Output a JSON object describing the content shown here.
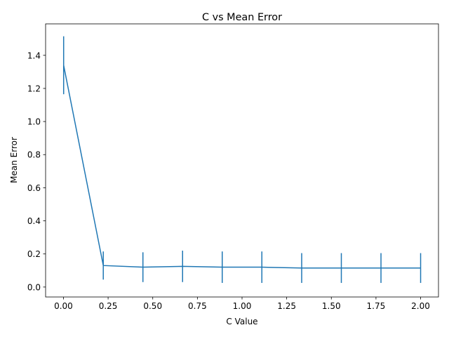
{
  "chart_data": {
    "type": "line",
    "title": "C vs Mean Error",
    "xlabel": "C Value",
    "ylabel": "Mean Error",
    "xlim": [
      -0.1,
      2.1
    ],
    "ylim": [
      -0.06,
      1.59
    ],
    "x_ticks": [
      0.0,
      0.25,
      0.5,
      0.75,
      1.0,
      1.25,
      1.5,
      1.75,
      2.0
    ],
    "x_tick_labels": [
      "0.00",
      "0.25",
      "0.50",
      "0.75",
      "1.00",
      "1.25",
      "1.50",
      "1.75",
      "2.00"
    ],
    "y_ticks": [
      0.0,
      0.2,
      0.4,
      0.6,
      0.8,
      1.0,
      1.2,
      1.4
    ],
    "y_tick_labels": [
      "0.0",
      "0.2",
      "0.4",
      "0.6",
      "0.8",
      "1.0",
      "1.2",
      "1.4"
    ],
    "grid": false,
    "color": "#1f77b4",
    "series": [
      {
        "x": [
          0.001,
          0.223,
          0.445,
          0.667,
          0.889,
          1.111,
          1.334,
          1.556,
          1.778,
          2.0
        ],
        "y": [
          1.34,
          0.13,
          0.12,
          0.125,
          0.12,
          0.12,
          0.115,
          0.115,
          0.115,
          0.115
        ],
        "yerr": [
          0.175,
          0.085,
          0.09,
          0.095,
          0.095,
          0.095,
          0.09,
          0.09,
          0.09,
          0.09
        ]
      }
    ]
  }
}
